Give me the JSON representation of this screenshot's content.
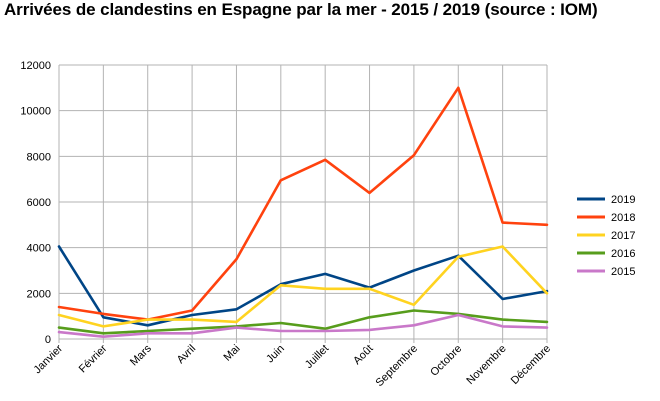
{
  "chart_data": {
    "type": "line",
    "title": "Arrivées de clandestins en Espagne par la mer - 2015 / 2019 (source : IOM)",
    "xlabel": "",
    "ylabel": "",
    "categories": [
      "Janvier",
      "Février",
      "Mars",
      "Avril",
      "Mai",
      "Juin",
      "Juillet",
      "Août",
      "Septembre",
      "Octobre",
      "Novembre",
      "Décembre"
    ],
    "ylim": [
      0,
      12000
    ],
    "yticks": [
      0,
      2000,
      4000,
      6000,
      8000,
      10000,
      12000
    ],
    "grid": true,
    "legend_position": "right",
    "series": [
      {
        "name": "2019",
        "color": "#004586",
        "values": [
          4050,
          950,
          600,
          1050,
          1300,
          2400,
          2850,
          2250,
          3000,
          3650,
          1750,
          2100
        ]
      },
      {
        "name": "2018",
        "color": "#ff420e",
        "values": [
          1400,
          1100,
          850,
          1250,
          3500,
          6950,
          7850,
          6400,
          8050,
          11000,
          5100,
          5000
        ]
      },
      {
        "name": "2017",
        "color": "#ffd320",
        "values": [
          1050,
          550,
          850,
          850,
          750,
          2350,
          2200,
          2200,
          1500,
          3600,
          4050,
          2000
        ]
      },
      {
        "name": "2016",
        "color": "#579d1c",
        "values": [
          500,
          250,
          350,
          450,
          550,
          700,
          450,
          950,
          1250,
          1100,
          850,
          750
        ]
      },
      {
        "name": "2015",
        "color": "#c978c9",
        "values": [
          300,
          100,
          250,
          250,
          500,
          350,
          350,
          400,
          600,
          1050,
          550,
          500
        ]
      }
    ]
  }
}
